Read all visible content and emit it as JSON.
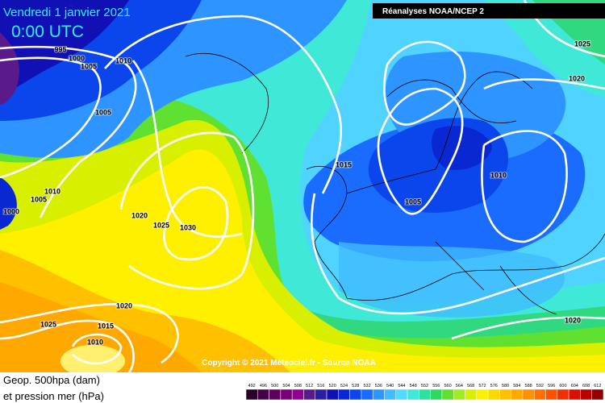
{
  "header": {
    "date": "Vendredi 1 janvier 2021",
    "time": "0:00 UTC",
    "source": "Réanalyses NOAA/NCEP 2"
  },
  "copyright": "Copyright © 2021 Meteociel.fr - Source NOAA",
  "legend": {
    "line1": "Geop. 500hpa (dam)",
    "line2": "et pression mer (hPa)",
    "values": [
      492,
      496,
      500,
      504,
      508,
      512,
      516,
      520,
      524,
      528,
      532,
      536,
      540,
      544,
      548,
      552,
      556,
      560,
      564,
      568,
      572,
      576,
      580,
      584,
      588,
      592,
      596,
      600,
      604,
      608,
      612
    ],
    "colors": [
      "#2a0028",
      "#440044",
      "#5e005e",
      "#780078",
      "#920092",
      "#5a1a8c",
      "#2c1ea0",
      "#1010b4",
      "#0a28d2",
      "#0a46ec",
      "#1a6cff",
      "#2e94ff",
      "#40bcff",
      "#50dcff",
      "#40e8d8",
      "#30e0a0",
      "#30d860",
      "#60e030",
      "#a0ec20",
      "#d8f000",
      "#fff000",
      "#ffd800",
      "#ffc000",
      "#ffa800",
      "#ff9000",
      "#ff7000",
      "#ff5000",
      "#f03000",
      "#d81000",
      "#b80000",
      "#900000"
    ]
  },
  "isobars": [
    "995",
    "1000",
    "1005",
    "1010",
    "1005",
    "1010",
    "1005",
    "1000",
    "1020",
    "1025",
    "1030",
    "1015",
    "1005",
    "1010",
    "1025",
    "1020",
    "1020",
    "1025",
    "1015",
    "1010",
    "1020"
  ]
}
